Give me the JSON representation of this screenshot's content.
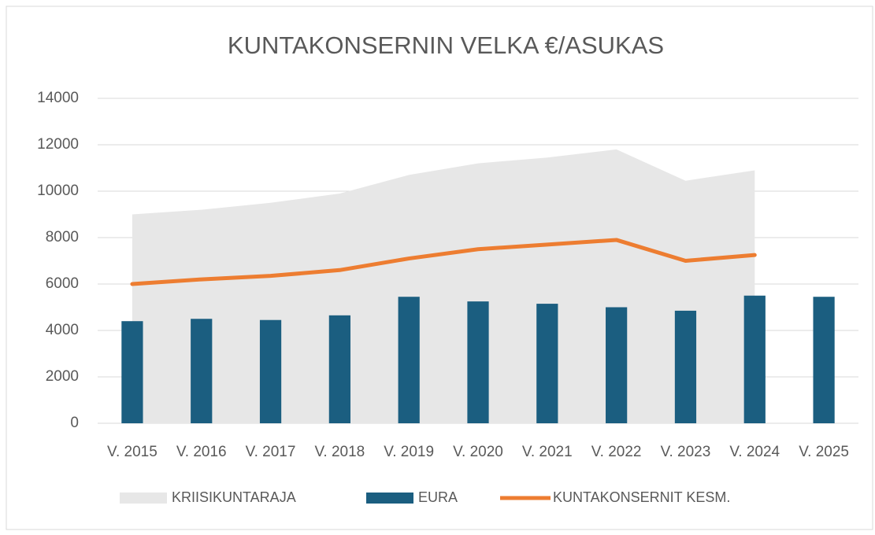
{
  "chart_data": {
    "type": "combo",
    "title": "KUNTAKONSERNIN VELKA €/ASUKAS",
    "categories": [
      "V. 2015",
      "V. 2016",
      "V. 2017",
      "V. 2018",
      "V. 2019",
      "V. 2020",
      "V. 2021",
      "V. 2022",
      "V. 2023",
      "V. 2024",
      "V. 2025"
    ],
    "series": [
      {
        "name": "KRIISIKUNTARAJA",
        "kind": "area",
        "color": "#e7e7e7",
        "values": [
          9000,
          9200,
          9500,
          9900,
          10700,
          11200,
          11450,
          11800,
          10450,
          10900,
          null
        ]
      },
      {
        "name": "EURA",
        "kind": "bar",
        "color": "#1b5e80",
        "values": [
          4400,
          4500,
          4450,
          4650,
          5450,
          5250,
          5150,
          5000,
          4850,
          5500,
          5450
        ]
      },
      {
        "name": "KUNTAKONSERNIT KESM.",
        "kind": "line",
        "color": "#ed7d31",
        "values": [
          6000,
          6200,
          6350,
          6600,
          7100,
          7500,
          7700,
          7900,
          7000,
          7250,
          null
        ]
      }
    ],
    "ylim": [
      0,
      14000
    ],
    "yticks": [
      0,
      2000,
      4000,
      6000,
      8000,
      10000,
      12000,
      14000
    ],
    "grid": true,
    "legend": "bottom"
  }
}
